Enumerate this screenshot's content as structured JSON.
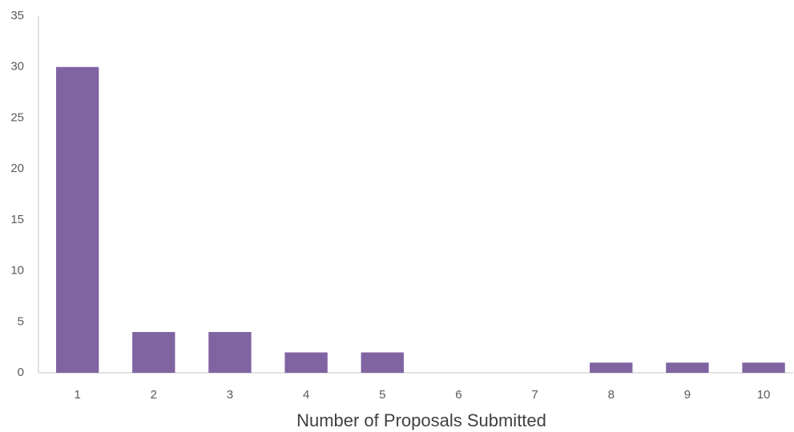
{
  "chart_data": {
    "type": "bar",
    "x_label": "Number of Proposals Submitted",
    "categories": [
      "1",
      "2",
      "3",
      "4",
      "5",
      "6",
      "7",
      "8",
      "9",
      "10"
    ],
    "values": [
      30,
      4,
      4,
      2,
      2,
      0,
      0,
      1,
      1,
      1
    ],
    "color": "#8064a2",
    "ylim": [
      0,
      35
    ],
    "yticks": [
      0,
      5,
      10,
      15,
      20,
      25,
      30,
      35
    ],
    "grid": false
  }
}
